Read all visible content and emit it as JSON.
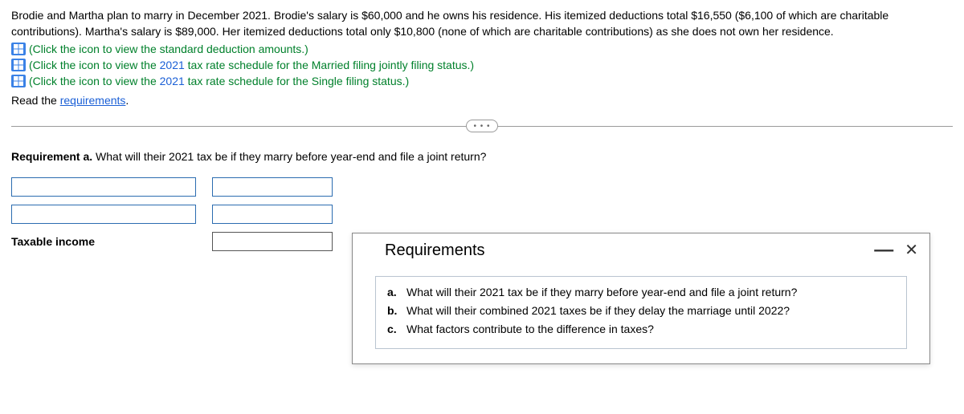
{
  "intro": "Brodie and Martha plan to marry in December 2021. Brodie's salary is $60,000 and he owns his residence. His itemized deductions total $16,550 ($6,100 of which are charitable contributions). Martha's salary is $89,000. Her itemized deductions total only $10,800 (none of which are charitable contributions) as she does not own her residence.",
  "links": {
    "link1_pre": "(Click the icon to view the standard deduction amounts.)",
    "link2_pre": "(Click the icon to view the ",
    "link2_year": "2021",
    "link2_post": " tax rate schedule for the Married filing jointly filing status.)",
    "link3_pre": "(Click the icon to view the ",
    "link3_year": "2021",
    "link3_post": " tax rate schedule for the Single filing status.)"
  },
  "read_req_pre": "Read the ",
  "read_req_link": "requirements",
  "read_req_post": ".",
  "divider_dots": "• • •",
  "requirement_label": "Requirement a. ",
  "requirement_question": "What will their 2021 tax be if they marry before year-end and file a joint return?",
  "taxable_income_label": "Taxable income",
  "modal": {
    "title": "Requirements",
    "items": {
      "a_marker": "a.",
      "a_text": "What will their 2021 tax be if they marry before year-end and file a joint return?",
      "b_marker": "b.",
      "b_text": "What will their combined 2021 taxes be if they delay the marriage until 2022?",
      "c_marker": "c.",
      "c_text": "What factors contribute to the difference in taxes?"
    },
    "minimize": "—",
    "close": "✕"
  }
}
